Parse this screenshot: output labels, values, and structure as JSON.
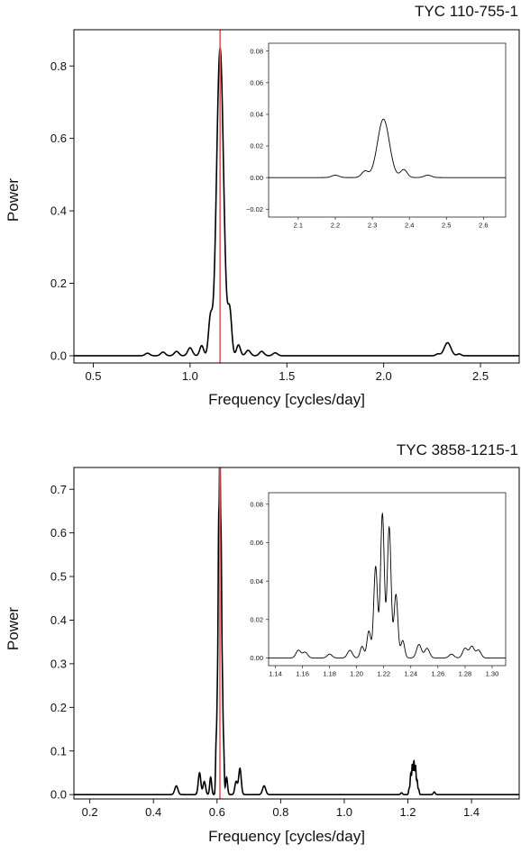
{
  "chart_data": [
    {
      "type": "line",
      "title": "TYC 110-755-1",
      "xlabel": "Frequency [cycles/day]",
      "ylabel": "Power",
      "xlim": [
        0.4,
        2.7
      ],
      "ylim": [
        -0.02,
        0.9
      ],
      "xticks": [
        0.5,
        1.0,
        1.5,
        2.0,
        2.5
      ],
      "xtick_labels": [
        "0.5",
        "1.0",
        "1.5",
        "2.0",
        "2.5"
      ],
      "yticks": [
        0.0,
        0.2,
        0.4,
        0.6,
        0.8
      ],
      "ytick_labels": [
        "0.0",
        "0.2",
        "0.4",
        "0.6",
        "0.8"
      ],
      "marker_line": {
        "x": 1.155,
        "color": "#e8585a"
      },
      "line_color": "#000000",
      "peaks": [
        {
          "x": 1.155,
          "y": 0.85,
          "w": 0.018
        },
        {
          "x": 1.105,
          "y": 0.1,
          "w": 0.01
        },
        {
          "x": 1.205,
          "y": 0.12,
          "w": 0.01
        },
        {
          "x": 1.06,
          "y": 0.028,
          "w": 0.01
        },
        {
          "x": 1.25,
          "y": 0.03,
          "w": 0.01
        },
        {
          "x": 1.0,
          "y": 0.022,
          "w": 0.012
        },
        {
          "x": 1.3,
          "y": 0.015,
          "w": 0.012
        },
        {
          "x": 0.93,
          "y": 0.012,
          "w": 0.012
        },
        {
          "x": 1.37,
          "y": 0.012,
          "w": 0.012
        },
        {
          "x": 0.86,
          "y": 0.01,
          "w": 0.012
        },
        {
          "x": 1.44,
          "y": 0.008,
          "w": 0.012
        },
        {
          "x": 0.78,
          "y": 0.007,
          "w": 0.012
        },
        {
          "x": 2.33,
          "y": 0.036,
          "w": 0.017
        },
        {
          "x": 2.28,
          "y": 0.005,
          "w": 0.01
        },
        {
          "x": 2.39,
          "y": 0.005,
          "w": 0.01
        }
      ],
      "inset": {
        "xlim": [
          2.02,
          2.66
        ],
        "ylim": [
          -0.025,
          0.085
        ],
        "xticks": [
          2.1,
          2.2,
          2.3,
          2.4,
          2.5,
          2.6
        ],
        "xtick_labels": [
          "2.1",
          "2.2",
          "2.3",
          "2.4",
          "2.5",
          "2.6"
        ],
        "yticks": [
          -0.02,
          0.0,
          0.02,
          0.04,
          0.06,
          0.08
        ],
        "ytick_labels": [
          "−0.02",
          "0.00",
          "0.02",
          "0.04",
          "0.06",
          "0.08"
        ],
        "peaks": [
          {
            "x": 2.33,
            "y": 0.037,
            "w": 0.016
          },
          {
            "x": 2.28,
            "y": 0.004,
            "w": 0.009
          },
          {
            "x": 2.385,
            "y": 0.005,
            "w": 0.009
          },
          {
            "x": 2.2,
            "y": 0.0015,
            "w": 0.01
          },
          {
            "x": 2.45,
            "y": 0.0015,
            "w": 0.01
          }
        ]
      }
    },
    {
      "type": "line",
      "title": "TYC 3858-1215-1",
      "xlabel": "Frequency [cycles/day]",
      "ylabel": "Power",
      "xlim": [
        0.15,
        1.55
      ],
      "ylim": [
        -0.01,
        0.75
      ],
      "xticks": [
        0.2,
        0.4,
        0.6,
        0.8,
        1.0,
        1.2,
        1.4
      ],
      "xtick_labels": [
        "0.2",
        "0.4",
        "0.6",
        "0.8",
        "1.0",
        "1.2",
        "1.4"
      ],
      "yticks": [
        0.0,
        0.1,
        0.2,
        0.3,
        0.4,
        0.5,
        0.6,
        0.7
      ],
      "ytick_labels": [
        "0.0",
        "0.1",
        "0.2",
        "0.3",
        "0.4",
        "0.5",
        "0.6",
        "0.7"
      ],
      "marker_line": {
        "x": 0.609,
        "color": "#e8585a"
      },
      "line_color": "#000000",
      "peaks": [
        {
          "x": 0.609,
          "y": 0.72,
          "w": 0.0018
        },
        {
          "x": 0.605,
          "y": 0.55,
          "w": 0.0018
        },
        {
          "x": 0.613,
          "y": 0.51,
          "w": 0.0018
        },
        {
          "x": 0.601,
          "y": 0.2,
          "w": 0.0018
        },
        {
          "x": 0.617,
          "y": 0.23,
          "w": 0.0018
        },
        {
          "x": 0.597,
          "y": 0.11,
          "w": 0.0018
        },
        {
          "x": 0.621,
          "y": 0.1,
          "w": 0.0018
        },
        {
          "x": 0.63,
          "y": 0.04,
          "w": 0.003
        },
        {
          "x": 0.58,
          "y": 0.04,
          "w": 0.003
        },
        {
          "x": 0.545,
          "y": 0.05,
          "w": 0.004
        },
        {
          "x": 0.56,
          "y": 0.03,
          "w": 0.004
        },
        {
          "x": 0.672,
          "y": 0.06,
          "w": 0.004
        },
        {
          "x": 0.66,
          "y": 0.03,
          "w": 0.004
        },
        {
          "x": 0.472,
          "y": 0.02,
          "w": 0.005
        },
        {
          "x": 0.748,
          "y": 0.02,
          "w": 0.005
        },
        {
          "x": 1.219,
          "y": 0.075,
          "w": 0.0018
        },
        {
          "x": 1.214,
          "y": 0.068,
          "w": 0.0018
        },
        {
          "x": 1.224,
          "y": 0.066,
          "w": 0.0018
        },
        {
          "x": 1.209,
          "y": 0.048,
          "w": 0.0018
        },
        {
          "x": 1.229,
          "y": 0.033,
          "w": 0.0018
        },
        {
          "x": 1.204,
          "y": 0.014,
          "w": 0.0018
        },
        {
          "x": 1.234,
          "y": 0.012,
          "w": 0.0018
        },
        {
          "x": 1.18,
          "y": 0.004,
          "w": 0.003
        },
        {
          "x": 1.283,
          "y": 0.006,
          "w": 0.003
        }
      ],
      "inset": {
        "xlim": [
          1.135,
          1.31
        ],
        "ylim": [
          -0.004,
          0.086
        ],
        "xticks": [
          1.14,
          1.16,
          1.18,
          1.2,
          1.22,
          1.24,
          1.26,
          1.28,
          1.3
        ],
        "xtick_labels": [
          "1.14",
          "1.16",
          "1.18",
          "1.20",
          "1.22",
          "1.24",
          "1.26",
          "1.28",
          "1.30"
        ],
        "yticks": [
          0.0,
          0.02,
          0.04,
          0.06,
          0.08
        ],
        "ytick_labels": [
          "0.00",
          "0.02",
          "0.04",
          "0.06",
          "0.08"
        ],
        "peaks": [
          {
            "x": 1.219,
            "y": 0.075,
            "w": 0.0014
          },
          {
            "x": 1.214,
            "y": 0.0475,
            "w": 0.0014
          },
          {
            "x": 1.224,
            "y": 0.068,
            "w": 0.0014
          },
          {
            "x": 1.229,
            "y": 0.033,
            "w": 0.0014
          },
          {
            "x": 1.209,
            "y": 0.014,
            "w": 0.0014
          },
          {
            "x": 1.234,
            "y": 0.009,
            "w": 0.0014
          },
          {
            "x": 1.204,
            "y": 0.006,
            "w": 0.0014
          },
          {
            "x": 1.246,
            "y": 0.007,
            "w": 0.0018
          },
          {
            "x": 1.252,
            "y": 0.005,
            "w": 0.0018
          },
          {
            "x": 1.195,
            "y": 0.004,
            "w": 0.0018
          },
          {
            "x": 1.157,
            "y": 0.004,
            "w": 0.0018
          },
          {
            "x": 1.162,
            "y": 0.003,
            "w": 0.0018
          },
          {
            "x": 1.28,
            "y": 0.005,
            "w": 0.0018
          },
          {
            "x": 1.285,
            "y": 0.006,
            "w": 0.0018
          },
          {
            "x": 1.29,
            "y": 0.004,
            "w": 0.0018
          },
          {
            "x": 1.18,
            "y": 0.002,
            "w": 0.0018
          },
          {
            "x": 1.27,
            "y": 0.002,
            "w": 0.0018
          }
        ]
      }
    }
  ]
}
